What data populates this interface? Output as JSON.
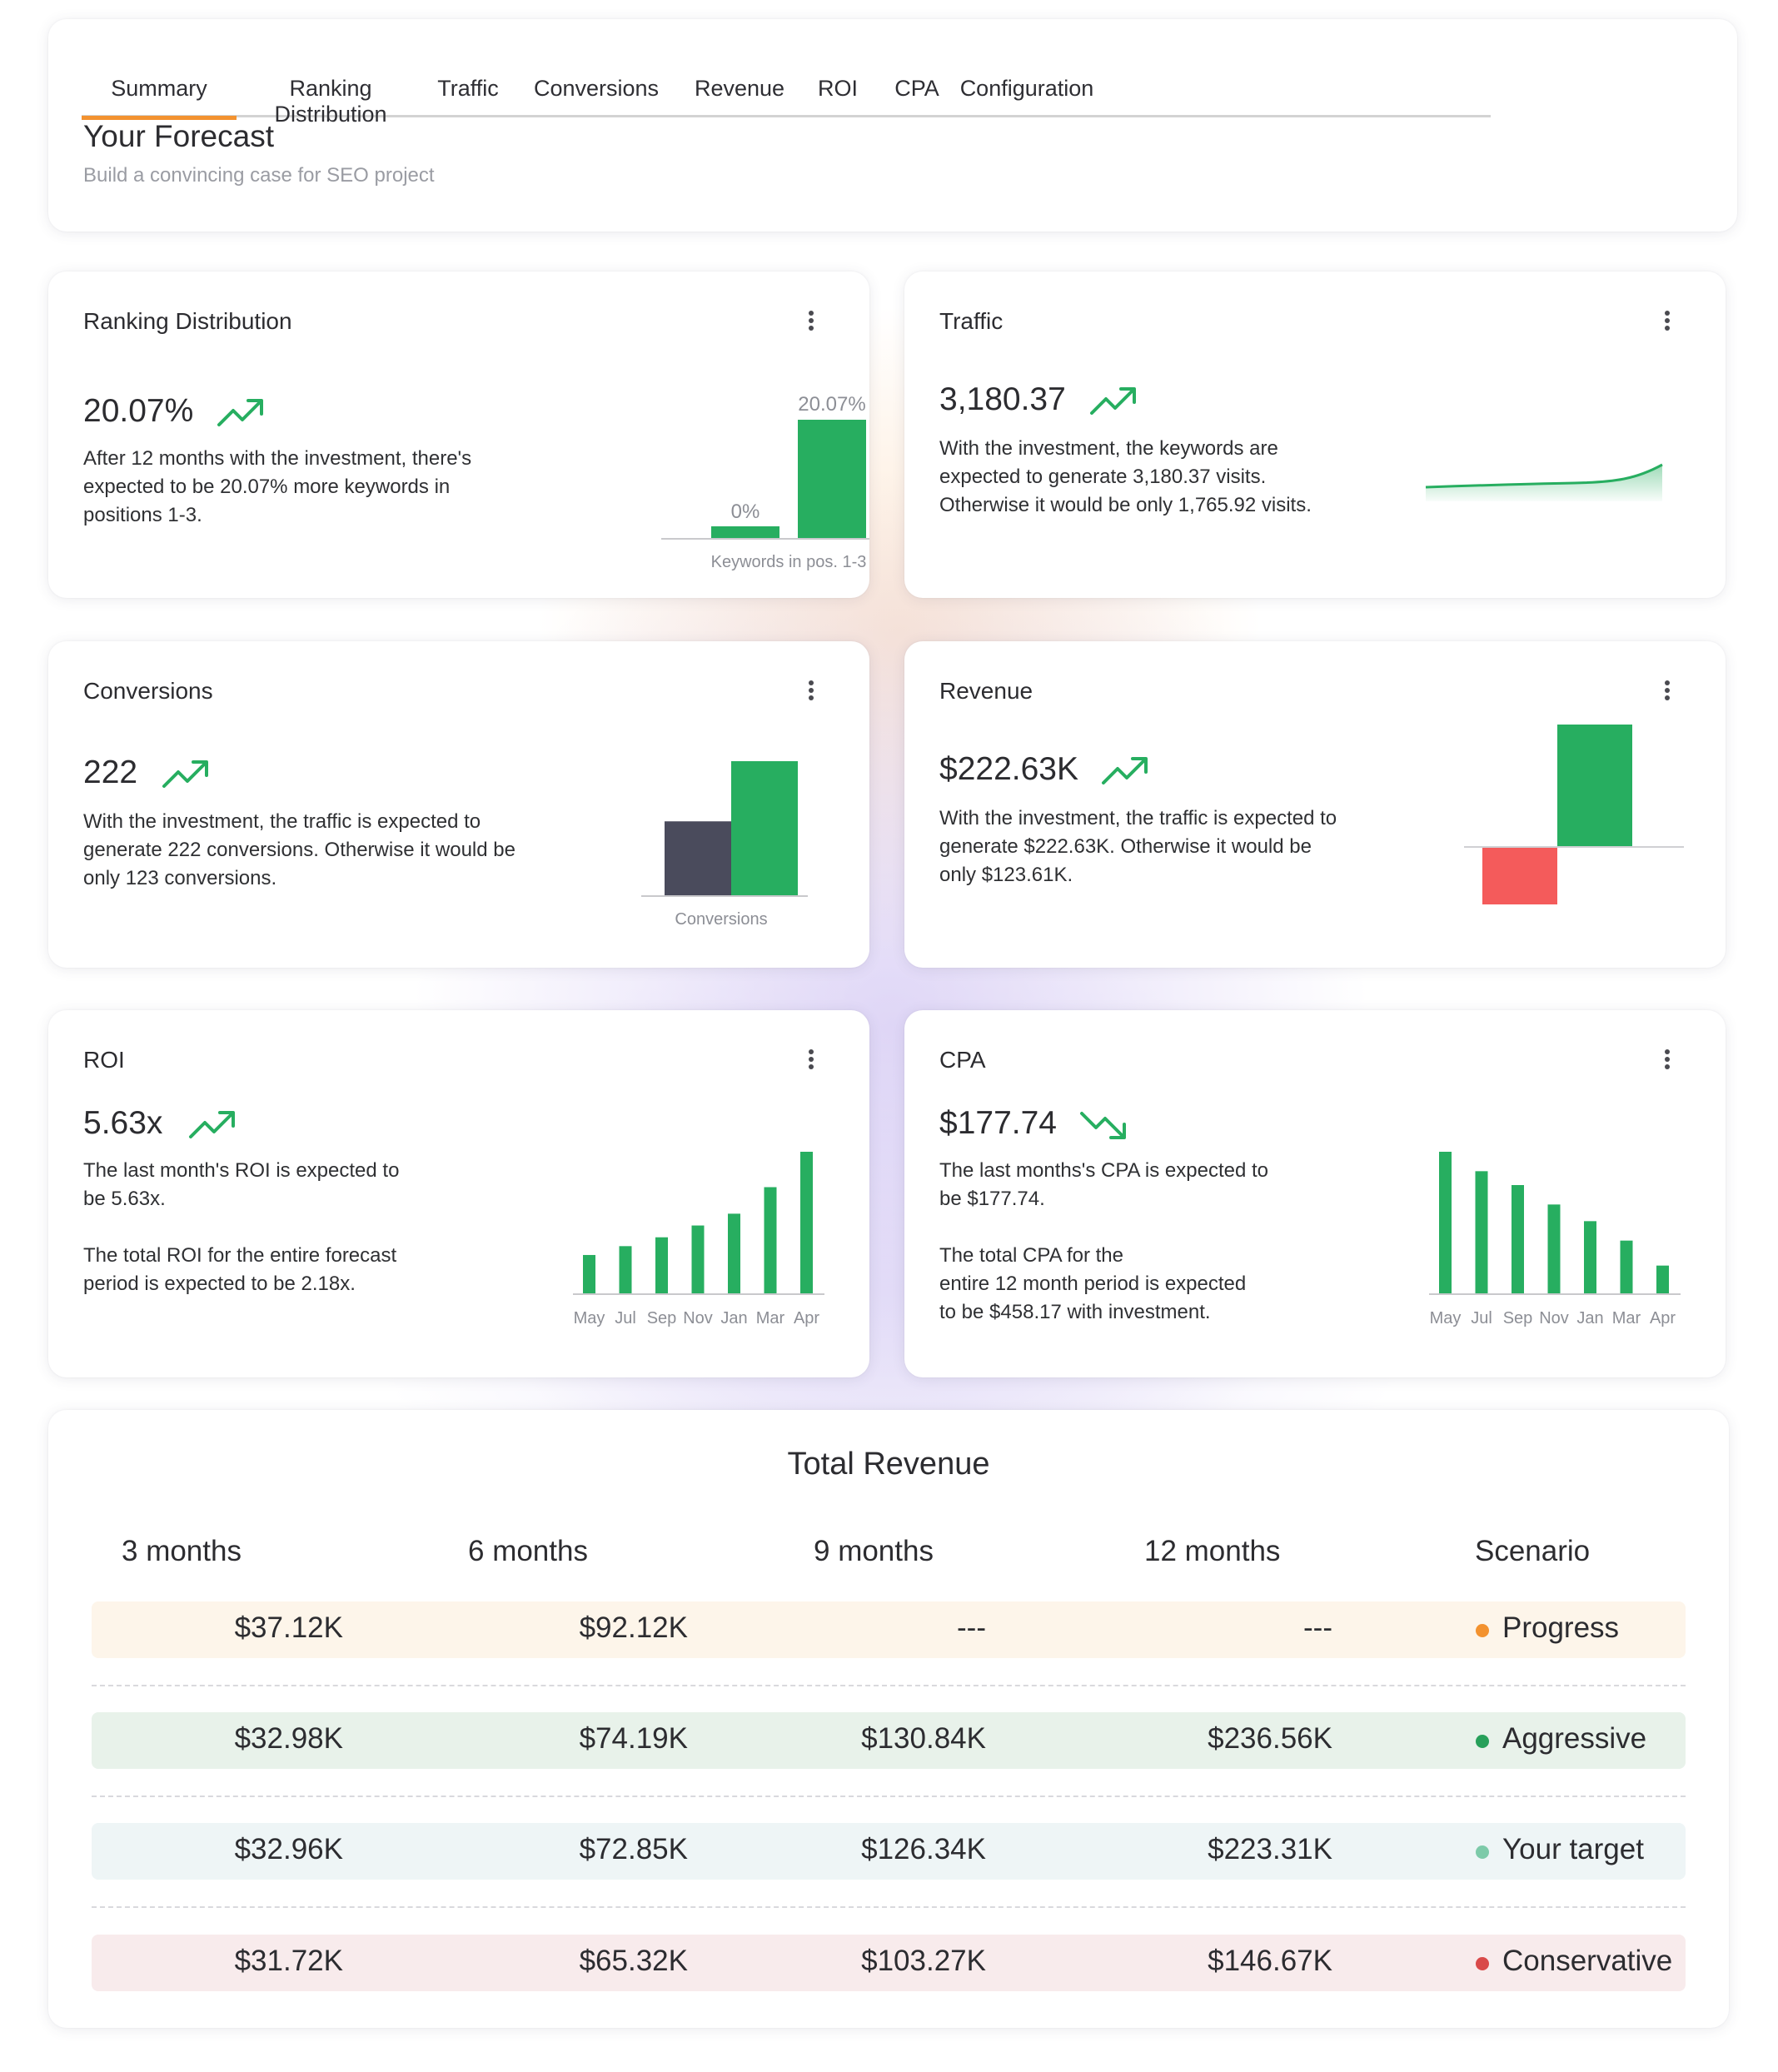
{
  "tabs": [
    "Summary",
    "Ranking Distribution",
    "Traffic",
    "Conversions",
    "Revenue",
    "ROI",
    "CPA",
    "Configuration"
  ],
  "active_tab": "Summary",
  "header": {
    "title": "Your Forecast",
    "subtitle": "Build a convincing case for SEO project"
  },
  "colors": {
    "accent": "#f3922f",
    "green": "#27ae60",
    "dark_bar": "#4a4b5c",
    "red": "#f45b5b"
  },
  "ranking": {
    "title": "Ranking Distribution",
    "value": "20.07%",
    "trend": "up",
    "description": [
      "After 12 months with the investment, there's",
      "expected to be 20.07% more keywords in",
      "positions 1-3."
    ],
    "chart": {
      "without_label": "0%",
      "with_label": "20.07%",
      "xlabel": "Keywords in pos. 1-3"
    }
  },
  "traffic": {
    "title": "Traffic",
    "value": "3,180.37",
    "trend": "up",
    "description": [
      "With the investment, the keywords are",
      "expected to generate 3,180.37 visits.",
      "Otherwise it would be only 1,765.92 visits."
    ]
  },
  "conversions": {
    "title": "Conversions",
    "value": "222",
    "trend": "up",
    "description": [
      "With the investment, the traffic is expected to",
      "generate 222 conversions. Otherwise it would be",
      "only 123 conversions."
    ],
    "chart": {
      "xlabel": "Conversions",
      "without": 123,
      "with": 222
    }
  },
  "revenue": {
    "title": "Revenue",
    "value": "$222.63K",
    "trend": "up",
    "description": [
      "With the investment, the traffic is expected to",
      "generate $222.63K. Otherwise it would be",
      "only $123.61K."
    ]
  },
  "roi": {
    "title": "ROI",
    "value": "5.63x",
    "trend": "up",
    "description": [
      "The last month's ROI is expected to",
      "be 5.63x."
    ],
    "description2": [
      "The total ROI for the entire forecast",
      "period is expected to be 2.18x."
    ],
    "chart": {
      "categories": [
        "May",
        "Jul",
        "Sep",
        "Nov",
        "Jan",
        "Mar",
        "Apr"
      ],
      "values": [
        1.3,
        1.6,
        1.9,
        2.3,
        2.7,
        3.6,
        4.8
      ]
    }
  },
  "cpa": {
    "title": "CPA",
    "value": "$177.74",
    "trend": "down",
    "description": [
      "The last months's CPA is expected to",
      "be $177.74."
    ],
    "description2": [
      "The total CPA for the",
      "entire 12 month period is expected",
      "to be $458.17 with investment."
    ],
    "chart": {
      "categories": [
        "May",
        "Jul",
        "Sep",
        "Nov",
        "Jan",
        "Mar",
        "Apr"
      ],
      "values": [
        5.1,
        4.4,
        3.9,
        3.2,
        2.6,
        1.9,
        1.0
      ]
    }
  },
  "total_revenue": {
    "title": "Total Revenue",
    "headers": [
      "3 months",
      "6 months",
      "9 months",
      "12 months",
      "Scenario"
    ],
    "rows": [
      {
        "cells": [
          "$37.12K",
          "$92.12K",
          "---",
          "---"
        ],
        "scenario": "Progress",
        "dot": "#f3922f",
        "bg": "#fdf5ea"
      },
      {
        "cells": [
          "$32.98K",
          "$74.19K",
          "$130.84K",
          "$236.56K"
        ],
        "scenario": "Aggressive",
        "dot": "#27a05a",
        "bg": "#e8f2ea"
      },
      {
        "cells": [
          "$32.96K",
          "$72.85K",
          "$126.34K",
          "$223.31K"
        ],
        "scenario": "Your target",
        "dot": "#7dcaa9",
        "bg": "#eef5f6"
      },
      {
        "cells": [
          "$31.72K",
          "$65.32K",
          "$103.27K",
          "$146.67K"
        ],
        "scenario": "Conservative",
        "dot": "#d94a4a",
        "bg": "#f8ebec"
      }
    ]
  }
}
